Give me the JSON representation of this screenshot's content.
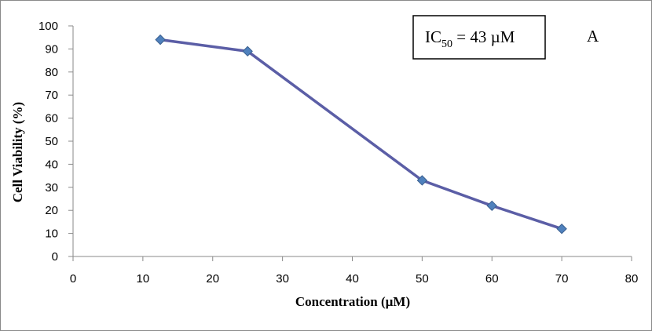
{
  "chart_data": {
    "type": "scatter",
    "xlabel": "Concentration (µM)",
    "ylabel": "Cell Viability (%)",
    "xlim": [
      0,
      80
    ],
    "ylim": [
      0,
      100
    ],
    "xticks": [
      "0",
      "10",
      "20",
      "30",
      "40",
      "50",
      "60",
      "70",
      "80"
    ],
    "yticks": [
      "0",
      "10",
      "20",
      "30",
      "40",
      "50",
      "60",
      "70",
      "80",
      "90",
      "100"
    ],
    "grid": false,
    "lines_connected": true,
    "marker": "diamond",
    "series": [
      {
        "color": "#5B5EA6",
        "marker_color": "#4F81BD",
        "x": [
          12.5,
          25,
          50,
          60,
          70
        ],
        "y": [
          94,
          89,
          33,
          22,
          12
        ]
      }
    ],
    "annotations": {
      "ic50_prefix": "IC",
      "ic50_subscript": "50",
      "ic50_value": " = 43 µM",
      "panel_label": "A"
    }
  }
}
